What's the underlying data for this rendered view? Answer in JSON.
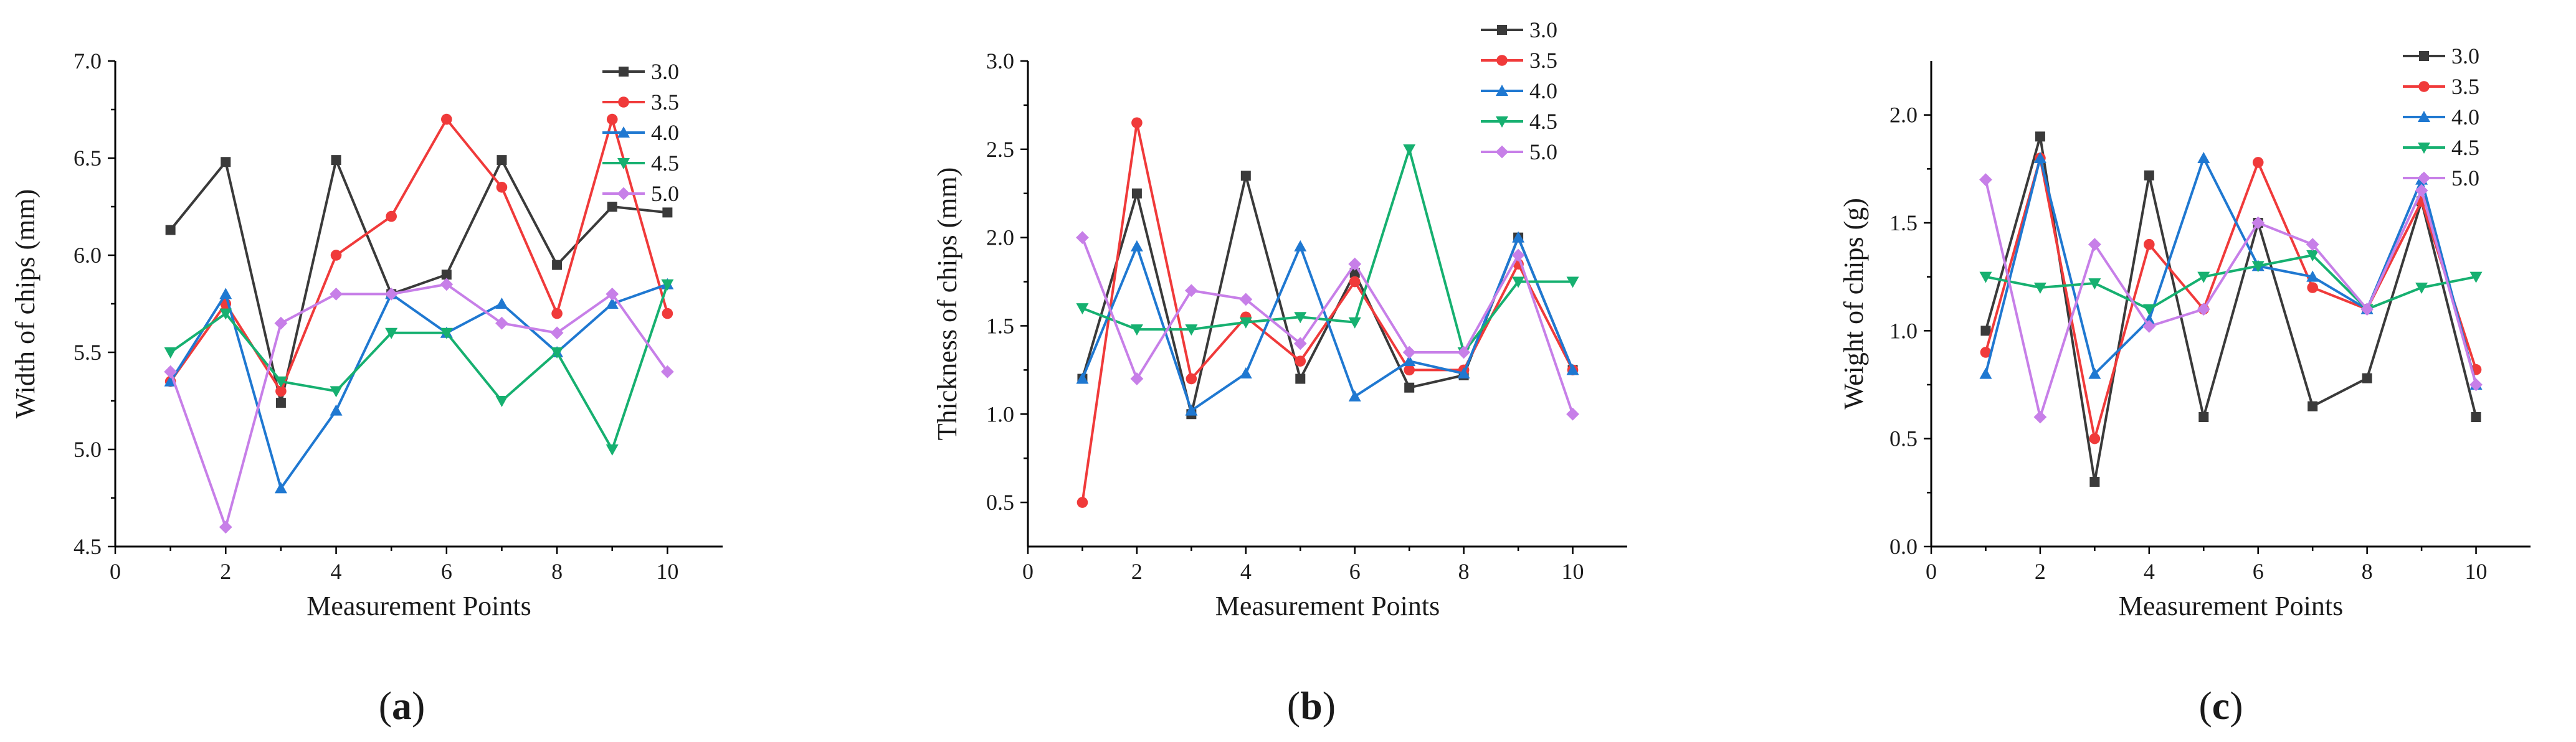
{
  "chart_data": [
    {
      "type": "line",
      "panel_label": "a",
      "title": "",
      "xlabel": "Measurement Points",
      "ylabel": "Width of chips (mm)",
      "xlim": [
        0,
        11
      ],
      "ylim": [
        4.5,
        7.0
      ],
      "x_ticks": [
        0,
        2,
        4,
        6,
        8,
        10
      ],
      "y_ticks": [
        4.5,
        5.0,
        5.5,
        6.0,
        6.5,
        7.0
      ],
      "y_tick_labels": [
        "4.5",
        "5.0",
        "5.5",
        "6.0",
        "6.5",
        "7.0"
      ],
      "grid": false,
      "legend_position": "top-right",
      "x": [
        1,
        2,
        3,
        4,
        5,
        6,
        7,
        8,
        9,
        10
      ],
      "series": [
        {
          "name": "3.0",
          "color": "#3a3a3a",
          "marker": "square",
          "values": [
            6.13,
            6.48,
            5.24,
            6.49,
            5.8,
            5.9,
            6.49,
            5.95,
            6.25,
            6.22
          ]
        },
        {
          "name": "3.5",
          "color": "#f03a3a",
          "marker": "circle",
          "values": [
            5.35,
            5.75,
            5.3,
            6.0,
            6.2,
            6.7,
            6.35,
            5.7,
            6.7,
            5.7
          ]
        },
        {
          "name": "4.0",
          "color": "#1f78d1",
          "marker": "triangle-up",
          "values": [
            5.35,
            5.8,
            4.8,
            5.2,
            5.8,
            5.6,
            5.75,
            5.5,
            5.75,
            5.85
          ]
        },
        {
          "name": "4.5",
          "color": "#16b070",
          "marker": "triangle-down",
          "values": [
            5.5,
            5.7,
            5.35,
            5.3,
            5.6,
            5.6,
            5.25,
            5.5,
            5.0,
            5.85
          ]
        },
        {
          "name": "5.0",
          "color": "#c77fe8",
          "marker": "diamond",
          "values": [
            5.4,
            4.6,
            5.65,
            5.8,
            5.8,
            5.85,
            5.65,
            5.6,
            5.8,
            5.4
          ]
        }
      ]
    },
    {
      "type": "line",
      "panel_label": "b",
      "title": "",
      "xlabel": "Measurement Points",
      "ylabel": "Thickness of chips (mm)",
      "xlim": [
        0,
        11
      ],
      "ylim": [
        0.25,
        3.0
      ],
      "x_ticks": [
        0,
        2,
        4,
        6,
        8,
        10
      ],
      "y_ticks": [
        0.5,
        1.0,
        1.5,
        2.0,
        2.5,
        3.0
      ],
      "y_tick_labels": [
        "0.5",
        "1.0",
        "1.5",
        "2.0",
        "2.5",
        "3.0"
      ],
      "grid": false,
      "legend_position": "top-right",
      "x": [
        1,
        2,
        3,
        4,
        5,
        6,
        7,
        8,
        9,
        10
      ],
      "series": [
        {
          "name": "3.0",
          "color": "#3a3a3a",
          "marker": "square",
          "values": [
            1.2,
            2.25,
            1.0,
            2.35,
            1.2,
            1.8,
            1.15,
            1.22,
            2.0,
            1.25
          ]
        },
        {
          "name": "3.5",
          "color": "#f03a3a",
          "marker": "circle",
          "values": [
            0.5,
            2.65,
            1.2,
            1.55,
            1.3,
            1.75,
            1.25,
            1.25,
            1.85,
            1.25
          ]
        },
        {
          "name": "4.0",
          "color": "#1f78d1",
          "marker": "triangle-up",
          "values": [
            1.2,
            1.95,
            1.02,
            1.23,
            1.95,
            1.1,
            1.3,
            1.23,
            2.0,
            1.25
          ]
        },
        {
          "name": "4.5",
          "color": "#16b070",
          "marker": "triangle-down",
          "values": [
            1.6,
            1.48,
            1.48,
            1.52,
            1.55,
            1.52,
            2.5,
            1.35,
            1.75,
            1.75
          ]
        },
        {
          "name": "5.0",
          "color": "#c77fe8",
          "marker": "diamond",
          "values": [
            2.0,
            1.2,
            1.7,
            1.65,
            1.4,
            1.85,
            1.35,
            1.35,
            1.9,
            1.0
          ]
        }
      ]
    },
    {
      "type": "line",
      "panel_label": "c",
      "title": "",
      "xlabel": "Measurement Points",
      "ylabel": "Weight of chips (g)",
      "xlim": [
        0,
        11
      ],
      "ylim": [
        0.0,
        2.25
      ],
      "x_ticks": [
        0,
        2,
        4,
        6,
        8,
        10
      ],
      "y_ticks": [
        0.0,
        0.5,
        1.0,
        1.5,
        2.0
      ],
      "y_tick_labels": [
        "0.0",
        "0.5",
        "1.0",
        "1.5",
        "2.0"
      ],
      "grid": false,
      "legend_position": "top-right",
      "x": [
        1,
        2,
        3,
        4,
        5,
        6,
        7,
        8,
        9,
        10
      ],
      "series": [
        {
          "name": "3.0",
          "color": "#3a3a3a",
          "marker": "square",
          "values": [
            1.0,
            1.9,
            0.3,
            1.72,
            0.6,
            1.5,
            0.65,
            0.78,
            1.6,
            0.6
          ]
        },
        {
          "name": "3.5",
          "color": "#f03a3a",
          "marker": "circle",
          "values": [
            0.9,
            1.8,
            0.5,
            1.4,
            1.1,
            1.78,
            1.2,
            1.1,
            1.6,
            0.82
          ]
        },
        {
          "name": "4.0",
          "color": "#1f78d1",
          "marker": "triangle-up",
          "values": [
            0.8,
            1.8,
            0.8,
            1.05,
            1.8,
            1.3,
            1.25,
            1.1,
            1.7,
            0.75
          ]
        },
        {
          "name": "4.5",
          "color": "#16b070",
          "marker": "triangle-down",
          "values": [
            1.25,
            1.2,
            1.22,
            1.1,
            1.25,
            1.3,
            1.35,
            1.1,
            1.2,
            1.25
          ]
        },
        {
          "name": "5.0",
          "color": "#c77fe8",
          "marker": "diamond",
          "values": [
            1.7,
            0.6,
            1.4,
            1.02,
            1.1,
            1.5,
            1.4,
            1.1,
            1.65,
            0.75
          ]
        }
      ]
    }
  ]
}
